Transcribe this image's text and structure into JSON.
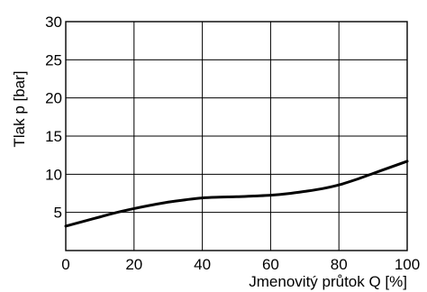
{
  "chart_data": {
    "type": "line",
    "title": "",
    "xlabel": "Jmenovitý průtok  Q [%]",
    "ylabel": "Tlak p [bar]",
    "xlim": [
      0,
      100
    ],
    "ylim": [
      0,
      30
    ],
    "x_ticks": [
      "0",
      "20",
      "40",
      "60",
      "80",
      "100"
    ],
    "y_ticks": [
      "5",
      "10",
      "15",
      "20",
      "25",
      "30"
    ],
    "grid": true,
    "legend": "none",
    "series": [
      {
        "line_color": "#000000",
        "x": [
          0,
          5,
          10,
          15,
          20,
          25,
          30,
          35,
          40,
          45,
          50,
          55,
          60,
          65,
          70,
          75,
          80,
          85,
          90,
          95,
          100
        ],
        "y": [
          3.2,
          3.8,
          4.4,
          5.0,
          5.5,
          5.95,
          6.35,
          6.65,
          6.9,
          7.0,
          7.05,
          7.15,
          7.25,
          7.45,
          7.75,
          8.1,
          8.6,
          9.3,
          10.1,
          10.9,
          11.7
        ]
      }
    ]
  }
}
